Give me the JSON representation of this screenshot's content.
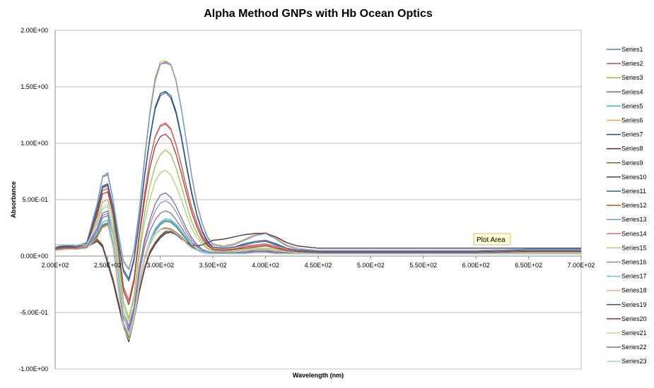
{
  "chart_data": {
    "type": "line",
    "title": "Alpha Method GNPs with Hb Ocean Optics",
    "xlabel": "Wavelength (nm)",
    "ylabel": "Absorbance",
    "xlim": [
      200,
      700
    ],
    "ylim": [
      -1.0,
      2.0
    ],
    "x_ticks": [
      200,
      250,
      300,
      350,
      400,
      450,
      500,
      550,
      600,
      650,
      700
    ],
    "x_tick_labels": [
      "2.00E+02",
      "2.50E+02",
      "3.00E+02",
      "3.50E+02",
      "4.00E+02",
      "4.50E+02",
      "5.00E+02",
      "5.50E+02",
      "6.00E+02",
      "6.50E+02",
      "7.00E+02"
    ],
    "y_ticks": [
      -1.0,
      -0.5,
      0.0,
      0.5,
      1.0,
      1.5,
      2.0
    ],
    "y_tick_labels": [
      "-1.00E+00",
      "-5.00E-01",
      "0.00E+00",
      "5.00E-01",
      "1.00E+00",
      "1.50E+00",
      "2.00E+00"
    ],
    "grid": "horizontal",
    "legend_position": "right",
    "tooltip": "Plot Area",
    "x": [
      200,
      210,
      220,
      230,
      240,
      245,
      250,
      255,
      260,
      265,
      270,
      275,
      280,
      285,
      290,
      295,
      300,
      305,
      310,
      315,
      320,
      325,
      330,
      335,
      340,
      345,
      350,
      360,
      370,
      380,
      390,
      400,
      410,
      420,
      430,
      450,
      500,
      550,
      600,
      650,
      700
    ],
    "series": [
      {
        "name": "Series1",
        "color": "#4a7ebb",
        "values": [
          0.08,
          0.1,
          0.09,
          0.12,
          0.45,
          0.7,
          0.72,
          0.5,
          0.2,
          -0.05,
          -0.12,
          0.05,
          0.4,
          0.85,
          1.25,
          1.55,
          1.7,
          1.72,
          1.7,
          1.55,
          1.3,
          1.0,
          0.7,
          0.45,
          0.28,
          0.16,
          0.1,
          0.08,
          0.1,
          0.14,
          0.18,
          0.2,
          0.15,
          0.09,
          0.06,
          0.05,
          0.05,
          0.05,
          0.05,
          0.06,
          0.06
        ]
      },
      {
        "name": "Series2",
        "color": "#be4b48",
        "values": [
          0.07,
          0.08,
          0.08,
          0.1,
          0.38,
          0.58,
          0.6,
          0.4,
          0.1,
          -0.28,
          -0.4,
          -0.2,
          0.2,
          0.55,
          0.85,
          1.05,
          1.15,
          1.17,
          1.12,
          0.98,
          0.8,
          0.6,
          0.42,
          0.28,
          0.17,
          0.1,
          0.06,
          0.05,
          0.06,
          0.08,
          0.09,
          0.1,
          0.08,
          0.05,
          0.04,
          0.03,
          0.03,
          0.03,
          0.03,
          0.04,
          0.04
        ]
      },
      {
        "name": "Series3",
        "color": "#98b954",
        "values": [
          0.07,
          0.08,
          0.08,
          0.1,
          0.32,
          0.48,
          0.5,
          0.32,
          0.02,
          -0.4,
          -0.55,
          -0.35,
          0.05,
          0.38,
          0.62,
          0.8,
          0.9,
          0.94,
          0.9,
          0.78,
          0.62,
          0.45,
          0.3,
          0.2,
          0.12,
          0.07,
          0.05,
          0.04,
          0.05,
          0.06,
          0.07,
          0.07,
          0.06,
          0.04,
          0.03,
          0.03,
          0.03,
          0.03,
          0.03,
          0.03,
          0.03
        ]
      },
      {
        "name": "Series4",
        "color": "#7d60a0",
        "values": [
          0.06,
          0.07,
          0.07,
          0.08,
          0.25,
          0.38,
          0.4,
          0.22,
          -0.1,
          -0.5,
          -0.62,
          -0.45,
          -0.1,
          0.15,
          0.32,
          0.46,
          0.54,
          0.56,
          0.52,
          0.44,
          0.34,
          0.24,
          0.16,
          0.1,
          0.06,
          0.04,
          0.03,
          0.03,
          0.03,
          0.04,
          0.05,
          0.05,
          0.04,
          0.03,
          0.02,
          0.02,
          0.02,
          0.02,
          0.02,
          0.02,
          0.02
        ]
      },
      {
        "name": "Series5",
        "color": "#46aac4",
        "values": [
          0.05,
          0.06,
          0.06,
          0.07,
          0.2,
          0.3,
          0.32,
          0.12,
          -0.25,
          -0.6,
          -0.7,
          -0.52,
          -0.22,
          0.0,
          0.14,
          0.24,
          0.3,
          0.33,
          0.32,
          0.28,
          0.22,
          0.16,
          0.1,
          0.06,
          0.04,
          0.03,
          0.02,
          0.02,
          0.02,
          0.03,
          0.03,
          0.03,
          0.03,
          0.02,
          0.02,
          0.02,
          0.02,
          0.02,
          0.02,
          0.02,
          0.02
        ]
      },
      {
        "name": "Series6",
        "color": "#f59d56",
        "values": [
          0.08,
          0.1,
          0.09,
          0.12,
          0.47,
          0.71,
          0.73,
          0.51,
          0.21,
          -0.04,
          -0.11,
          0.06,
          0.42,
          0.88,
          1.28,
          1.58,
          1.72,
          1.73,
          1.7,
          1.56,
          1.31,
          1.01,
          0.71,
          0.46,
          0.29,
          0.17,
          0.11,
          0.09,
          0.11,
          0.15,
          0.19,
          0.21,
          0.16,
          0.1,
          0.07,
          0.05,
          0.05,
          0.05,
          0.05,
          0.06,
          0.06
        ]
      },
      {
        "name": "Series7",
        "color": "#2c4d75",
        "values": [
          0.08,
          0.09,
          0.09,
          0.11,
          0.42,
          0.62,
          0.64,
          0.44,
          0.14,
          -0.12,
          -0.2,
          -0.02,
          0.32,
          0.72,
          1.05,
          1.32,
          1.44,
          1.46,
          1.42,
          1.28,
          1.06,
          0.8,
          0.56,
          0.36,
          0.22,
          0.13,
          0.08,
          0.07,
          0.08,
          0.11,
          0.13,
          0.14,
          0.11,
          0.07,
          0.05,
          0.04,
          0.04,
          0.04,
          0.04,
          0.05,
          0.05
        ]
      },
      {
        "name": "Series8",
        "color": "#772c2a",
        "values": [
          0.06,
          0.07,
          0.07,
          0.08,
          0.15,
          0.1,
          -0.05,
          -0.2,
          -0.4,
          -0.6,
          -0.75,
          -0.55,
          -0.3,
          -0.1,
          0.04,
          0.12,
          0.18,
          0.22,
          0.22,
          0.2,
          0.16,
          0.12,
          0.1,
          0.09,
          0.1,
          0.12,
          0.14,
          0.15,
          0.17,
          0.19,
          0.2,
          0.2,
          0.17,
          0.12,
          0.09,
          0.07,
          0.07,
          0.07,
          0.07,
          0.07,
          0.07
        ]
      },
      {
        "name": "Series9",
        "color": "#5f7530",
        "values": [
          0.06,
          0.07,
          0.07,
          0.08,
          0.14,
          0.09,
          -0.06,
          -0.22,
          -0.42,
          -0.62,
          -0.76,
          -0.56,
          -0.31,
          -0.11,
          0.03,
          0.11,
          0.17,
          0.21,
          0.21,
          0.19,
          0.16,
          0.12,
          0.1,
          0.09,
          0.1,
          0.12,
          0.14,
          0.15,
          0.17,
          0.19,
          0.2,
          0.2,
          0.17,
          0.12,
          0.09,
          0.07,
          0.07,
          0.07,
          0.07,
          0.07,
          0.07
        ]
      },
      {
        "name": "Series10",
        "color": "#4d3b62",
        "values": [
          0.06,
          0.07,
          0.07,
          0.08,
          0.13,
          0.08,
          -0.07,
          -0.23,
          -0.43,
          -0.63,
          -0.76,
          -0.57,
          -0.32,
          -0.12,
          0.02,
          0.1,
          0.16,
          0.2,
          0.21,
          0.19,
          0.15,
          0.12,
          0.1,
          0.09,
          0.1,
          0.12,
          0.14,
          0.15,
          0.17,
          0.19,
          0.2,
          0.2,
          0.17,
          0.12,
          0.09,
          0.07,
          0.07,
          0.07,
          0.07,
          0.07,
          0.07
        ]
      },
      {
        "name": "Series11",
        "color": "#276a7c",
        "values": [
          0.05,
          0.06,
          0.06,
          0.07,
          0.18,
          0.27,
          0.29,
          0.1,
          -0.28,
          -0.62,
          -0.72,
          -0.55,
          -0.25,
          -0.02,
          0.12,
          0.22,
          0.28,
          0.31,
          0.3,
          0.26,
          0.2,
          0.14,
          0.09,
          0.06,
          0.04,
          0.03,
          0.02,
          0.02,
          0.02,
          0.03,
          0.03,
          0.03,
          0.03,
          0.02,
          0.02,
          0.02,
          0.02,
          0.02,
          0.02,
          0.02,
          0.02
        ]
      },
      {
        "name": "Series12",
        "color": "#b65708",
        "values": [
          0.05,
          0.06,
          0.06,
          0.07,
          0.17,
          0.26,
          0.28,
          0.09,
          -0.29,
          -0.63,
          -0.73,
          -0.56,
          -0.26,
          -0.03,
          0.11,
          0.2,
          0.24,
          0.25,
          0.24,
          0.21,
          0.17,
          0.12,
          0.08,
          0.05,
          0.03,
          0.02,
          0.02,
          0.02,
          0.02,
          0.02,
          0.03,
          0.03,
          0.02,
          0.02,
          0.02,
          0.02,
          0.02,
          0.02,
          0.02,
          0.02,
          0.02
        ]
      },
      {
        "name": "Series13",
        "color": "#729aca",
        "values": [
          0.08,
          0.1,
          0.09,
          0.12,
          0.46,
          0.7,
          0.74,
          0.5,
          0.2,
          -0.05,
          -0.12,
          0.05,
          0.4,
          0.86,
          1.26,
          1.56,
          1.7,
          1.71,
          1.69,
          1.55,
          1.3,
          1.0,
          0.7,
          0.45,
          0.28,
          0.16,
          0.1,
          0.08,
          0.1,
          0.14,
          0.18,
          0.2,
          0.15,
          0.09,
          0.06,
          0.05,
          0.05,
          0.05,
          0.05,
          0.06,
          0.06
        ]
      },
      {
        "name": "Series14",
        "color": "#cd7371",
        "values": [
          0.07,
          0.08,
          0.08,
          0.1,
          0.4,
          0.6,
          0.62,
          0.41,
          0.11,
          -0.27,
          -0.39,
          -0.19,
          0.21,
          0.56,
          0.86,
          1.06,
          1.16,
          1.18,
          1.13,
          0.99,
          0.81,
          0.61,
          0.43,
          0.29,
          0.18,
          0.11,
          0.07,
          0.06,
          0.07,
          0.09,
          0.1,
          0.11,
          0.09,
          0.06,
          0.05,
          0.04,
          0.04,
          0.04,
          0.04,
          0.05,
          0.05
        ]
      },
      {
        "name": "Series15",
        "color": "#afc97a",
        "values": [
          0.06,
          0.07,
          0.07,
          0.09,
          0.28,
          0.42,
          0.44,
          0.26,
          -0.04,
          -0.44,
          -0.58,
          -0.38,
          0.0,
          0.3,
          0.5,
          0.66,
          0.74,
          0.76,
          0.72,
          0.62,
          0.5,
          0.36,
          0.24,
          0.16,
          0.1,
          0.06,
          0.04,
          0.04,
          0.04,
          0.05,
          0.06,
          0.06,
          0.05,
          0.04,
          0.03,
          0.03,
          0.03,
          0.03,
          0.03,
          0.03,
          0.03
        ]
      },
      {
        "name": "Series16",
        "color": "#9983b5",
        "values": [
          0.06,
          0.07,
          0.07,
          0.08,
          0.24,
          0.36,
          0.38,
          0.2,
          -0.12,
          -0.52,
          -0.64,
          -0.47,
          -0.12,
          0.12,
          0.28,
          0.4,
          0.47,
          0.49,
          0.46,
          0.39,
          0.3,
          0.21,
          0.14,
          0.09,
          0.06,
          0.04,
          0.03,
          0.03,
          0.03,
          0.04,
          0.04,
          0.04,
          0.04,
          0.03,
          0.02,
          0.02,
          0.02,
          0.02,
          0.02,
          0.02,
          0.02
        ]
      },
      {
        "name": "Series17",
        "color": "#6fbdd1",
        "values": [
          0.05,
          0.06,
          0.06,
          0.07,
          0.19,
          0.28,
          0.3,
          0.11,
          -0.27,
          -0.61,
          -0.71,
          -0.54,
          -0.24,
          -0.01,
          0.13,
          0.23,
          0.29,
          0.32,
          0.31,
          0.27,
          0.21,
          0.15,
          0.1,
          0.06,
          0.04,
          0.03,
          0.02,
          0.02,
          0.02,
          0.03,
          0.03,
          0.03,
          0.03,
          0.02,
          0.02,
          0.02,
          0.02,
          0.02,
          0.02,
          0.02,
          0.02
        ]
      },
      {
        "name": "Series18",
        "color": "#f9b17c",
        "values": [
          0.05,
          0.06,
          0.06,
          0.07,
          0.16,
          0.25,
          0.27,
          0.08,
          -0.3,
          -0.64,
          -0.74,
          -0.57,
          -0.27,
          -0.04,
          0.1,
          0.19,
          0.23,
          0.24,
          0.23,
          0.2,
          0.16,
          0.11,
          0.07,
          0.05,
          0.03,
          0.02,
          0.02,
          0.02,
          0.02,
          0.02,
          0.03,
          0.03,
          0.02,
          0.02,
          0.02,
          0.02,
          0.02,
          0.02,
          0.02,
          0.02,
          0.02
        ]
      },
      {
        "name": "Series19",
        "color": "#2e5a8f",
        "values": [
          0.07,
          0.09,
          0.08,
          0.11,
          0.41,
          0.61,
          0.63,
          0.43,
          0.13,
          -0.14,
          -0.22,
          -0.04,
          0.3,
          0.7,
          1.03,
          1.3,
          1.42,
          1.45,
          1.4,
          1.26,
          1.04,
          0.78,
          0.54,
          0.35,
          0.21,
          0.12,
          0.08,
          0.07,
          0.08,
          0.1,
          0.12,
          0.13,
          0.1,
          0.07,
          0.05,
          0.04,
          0.04,
          0.04,
          0.04,
          0.05,
          0.05
        ]
      },
      {
        "name": "Series20",
        "color": "#a32f2c",
        "values": [
          0.07,
          0.08,
          0.08,
          0.1,
          0.36,
          0.55,
          0.57,
          0.37,
          0.07,
          -0.31,
          -0.43,
          -0.23,
          0.17,
          0.5,
          0.78,
          0.97,
          1.06,
          1.08,
          1.03,
          0.9,
          0.73,
          0.55,
          0.38,
          0.25,
          0.15,
          0.09,
          0.06,
          0.05,
          0.06,
          0.07,
          0.08,
          0.09,
          0.07,
          0.05,
          0.04,
          0.03,
          0.03,
          0.03,
          0.03,
          0.04,
          0.04
        ]
      },
      {
        "name": "Series21",
        "color": "#c9d89f",
        "values": [
          0.1,
          0.1,
          0.1,
          0.1,
          0.3,
          0.44,
          0.46,
          0.2,
          -0.1,
          -0.5,
          -0.68,
          -0.5,
          -0.2,
          0.0,
          0.14,
          0.2,
          0.24,
          0.24,
          0.23,
          0.2,
          0.16,
          0.11,
          0.07,
          0.05,
          0.03,
          0.02,
          0.02,
          0.02,
          0.02,
          0.02,
          0.03,
          0.03,
          0.02,
          0.02,
          0.02,
          0.02,
          0.02,
          0.02,
          0.02,
          0.02,
          0.02
        ]
      },
      {
        "name": "Series22",
        "color": "#7f6b99",
        "values": [
          0.06,
          0.07,
          0.07,
          0.08,
          0.22,
          0.34,
          0.36,
          0.18,
          -0.15,
          -0.55,
          -0.66,
          -0.49,
          -0.15,
          0.08,
          0.22,
          0.32,
          0.38,
          0.4,
          0.38,
          0.32,
          0.25,
          0.18,
          0.12,
          0.08,
          0.05,
          0.04,
          0.03,
          0.03,
          0.03,
          0.03,
          0.04,
          0.04,
          0.03,
          0.03,
          0.02,
          0.02,
          0.02,
          0.02,
          0.02,
          0.02,
          0.02
        ]
      },
      {
        "name": "Series23",
        "color": "#9fd3e6",
        "values": [
          0.1,
          0.1,
          0.1,
          0.1,
          0.28,
          0.42,
          0.44,
          0.18,
          -0.12,
          -0.52,
          -0.7,
          -0.52,
          -0.22,
          -0.02,
          0.12,
          0.19,
          0.23,
          0.24,
          0.23,
          0.2,
          0.16,
          0.11,
          0.07,
          0.05,
          0.03,
          0.02,
          0.02,
          0.02,
          0.02,
          0.02,
          0.03,
          0.03,
          0.02,
          0.02,
          0.02,
          0.02,
          0.02,
          0.02,
          0.02,
          0.02,
          0.02
        ]
      }
    ]
  }
}
